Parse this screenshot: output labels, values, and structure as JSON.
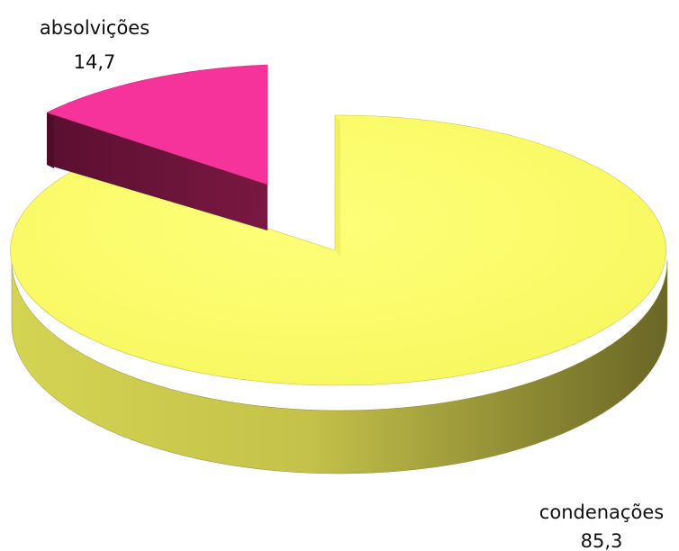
{
  "chart_data": {
    "type": "pie",
    "style": "3d-exploded",
    "slices": [
      {
        "label": "absolvições",
        "value": "14,7",
        "numeric": 14.7,
        "color": "#f5339b",
        "side_color": "#6b1238"
      },
      {
        "label": "condenações",
        "value": "85,3",
        "numeric": 85.3,
        "color": "#fbfb62",
        "side_color": "#b9b541"
      }
    ],
    "legend": "none"
  }
}
